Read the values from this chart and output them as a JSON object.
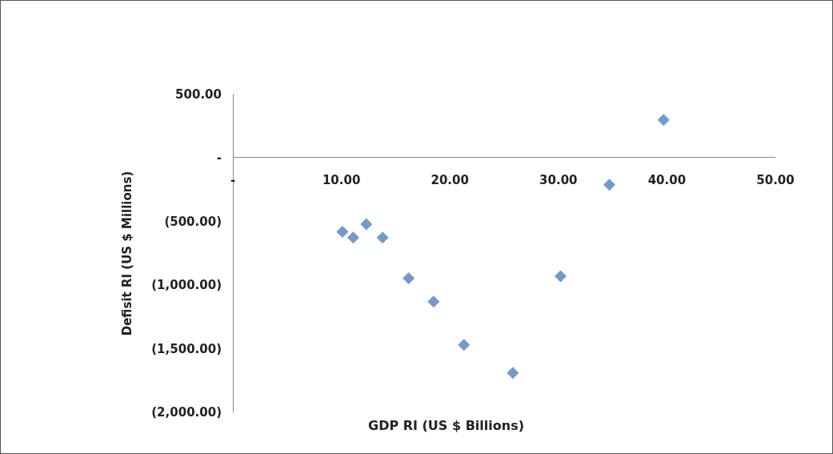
{
  "chart_data": {
    "type": "scatter",
    "xlabel": "GDP RI (US $ Billions)",
    "ylabel": "Defisit RI (US $ Millions)",
    "x": [
      39.7,
      34.7,
      10.1,
      11.1,
      12.3,
      13.8,
      16.2,
      18.5,
      21.3,
      25.8,
      30.2
    ],
    "values": [
      300,
      -210,
      -580,
      -625,
      -520,
      -625,
      -945,
      -1130,
      -1470,
      -1690,
      -930
    ],
    "color": "#4f81bd",
    "marker": "diamond",
    "xlim": [
      0,
      50
    ],
    "xticks": [
      {
        "value": 0,
        "label": "-"
      },
      {
        "value": 10,
        "label": "10.00"
      },
      {
        "value": 20,
        "label": "20.00"
      },
      {
        "value": 30,
        "label": "30.00"
      },
      {
        "value": 40,
        "label": "40.00"
      },
      {
        "value": 50,
        "label": "50.00"
      }
    ],
    "ylim": [
      -2000,
      500
    ],
    "yticks": [
      {
        "value": -2000,
        "label": "(2,000.00)"
      },
      {
        "value": -1500,
        "label": "(1,500.00)"
      },
      {
        "value": -1000,
        "label": "(1,000.00)"
      },
      {
        "value": -500,
        "label": "(500.00)"
      },
      {
        "value": 0,
        "label": "-"
      },
      {
        "value": 500,
        "label": "500.00"
      }
    ]
  }
}
